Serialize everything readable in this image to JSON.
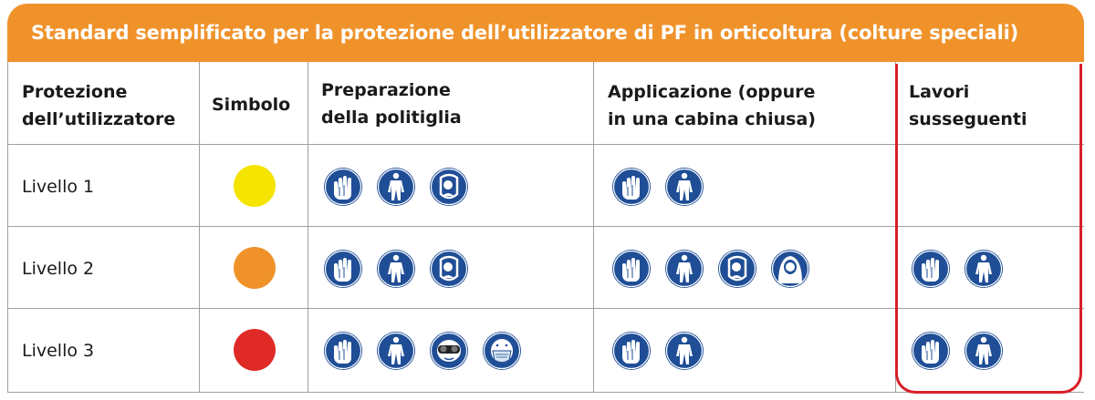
{
  "title": "Standard semplificato per la protezione dell’utilizzatore di PF in orticoltura (colture speciali)",
  "headers": {
    "protezione": [
      "Protezione",
      "dell’utilizzatore"
    ],
    "simbolo": "Simbolo",
    "preparazione": [
      "Preparazione",
      "della politiglia"
    ],
    "applicazione": [
      "Applicazione (oppure",
      "in una cabina chiusa)"
    ],
    "lavori": [
      "Lavori",
      "susseguenti"
    ]
  },
  "rows": [
    {
      "label": "Livello 1",
      "color": "#f5e400",
      "preparazione": [
        "gloves-icon",
        "coverall-icon",
        "face-shield-icon"
      ],
      "applicazione": [
        "gloves-icon",
        "coverall-icon"
      ],
      "lavori": []
    },
    {
      "label": "Livello 2",
      "color": "#f0922a",
      "preparazione": [
        "gloves-icon",
        "coverall-icon",
        "face-shield-icon"
      ],
      "applicazione": [
        "gloves-icon",
        "coverall-icon",
        "face-shield-icon",
        "hood-icon"
      ],
      "lavori": [
        "gloves-icon",
        "coverall-icon"
      ]
    },
    {
      "label": "Livello 3",
      "color": "#e02a27",
      "preparazione": [
        "gloves-icon",
        "coverall-icon",
        "goggles-icon",
        "respirator-icon"
      ],
      "applicazione": [
        "gloves-icon",
        "coverall-icon"
      ],
      "lavori": [
        "gloves-icon",
        "coverall-icon"
      ]
    }
  ],
  "colors": {
    "banner": "#f0922a",
    "icon_blue": "#1f4e96",
    "highlight": "#d9202a"
  }
}
